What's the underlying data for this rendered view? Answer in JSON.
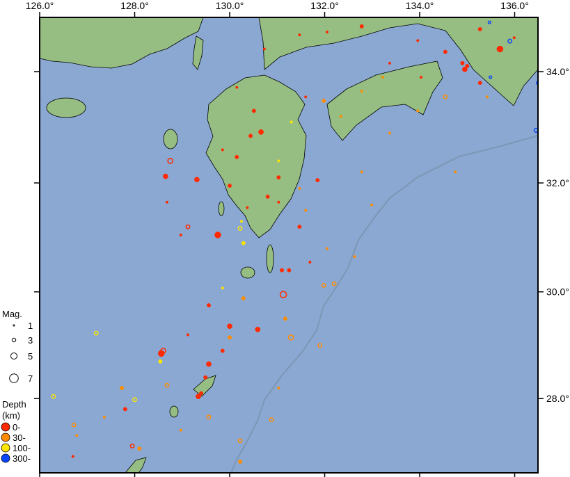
{
  "map": {
    "lon_labels": [
      "126.0°",
      "128.0°",
      "130.0°",
      "132.0°",
      "134.0°",
      "136.0°"
    ],
    "lon_values": [
      126,
      128,
      130,
      132,
      134,
      136
    ],
    "lat_labels": [
      "34.0°",
      "32.0°",
      "30.0°",
      "28.0°"
    ],
    "lat_values": [
      34,
      32,
      30,
      28
    ],
    "extent": {
      "lon": [
        126.0,
        136.5
      ],
      "lat": [
        26.6,
        35.0
      ]
    },
    "colors": {
      "sea": "#8aa8d2",
      "land": "#96bd82",
      "coast": "#000000",
      "trench": "#7d96b4",
      "border": "#8a9a88"
    }
  },
  "legend": {
    "mag_title": "Mag.",
    "mag_items": [
      {
        "label": "1",
        "mag": 1
      },
      {
        "label": "3",
        "mag": 3
      },
      {
        "label": "5",
        "mag": 5
      },
      {
        "label": "7",
        "mag": 7
      }
    ],
    "depth_title_1": "Depth",
    "depth_title_2": "(km)",
    "depth_items": [
      {
        "label": "0-",
        "depth": 0,
        "color": "#ff2a00"
      },
      {
        "label": "30-",
        "depth": 30,
        "color": "#ff8c00"
      },
      {
        "label": "100-",
        "depth": 100,
        "color": "#ffe600"
      },
      {
        "label": "300-",
        "depth": 300,
        "color": "#0a46ff"
      }
    ]
  },
  "events": [
    {
      "lon": 129.75,
      "lat": 31.05,
      "mag": 5,
      "depth": 0,
      "filled": true
    },
    {
      "lon": 129.31,
      "lat": 32.06,
      "mag": 4,
      "depth": 0,
      "filled": true
    },
    {
      "lon": 128.65,
      "lat": 32.12,
      "mag": 4,
      "depth": 0,
      "filled": true
    },
    {
      "lon": 130.0,
      "lat": 29.36,
      "mag": 4,
      "depth": 0,
      "filled": true
    },
    {
      "lon": 130.59,
      "lat": 29.3,
      "mag": 4,
      "depth": 0,
      "filled": true
    },
    {
      "lon": 129.56,
      "lat": 28.65,
      "mag": 4,
      "depth": 0,
      "filled": true
    },
    {
      "lon": 128.56,
      "lat": 28.85,
      "mag": 5,
      "depth": 0,
      "filled": true
    },
    {
      "lon": 128.6,
      "lat": 28.9,
      "mag": 4,
      "depth": 0,
      "filled": false
    },
    {
      "lon": 129.34,
      "lat": 28.04,
      "mag": 4,
      "depth": 0,
      "filled": true
    },
    {
      "lon": 129.4,
      "lat": 28.1,
      "mag": 3,
      "depth": 0,
      "filled": true
    },
    {
      "lon": 130.44,
      "lat": 32.85,
      "mag": 3,
      "depth": 0,
      "filled": true
    },
    {
      "lon": 130.66,
      "lat": 32.92,
      "mag": 4,
      "depth": 0,
      "filled": true
    },
    {
      "lon": 131.13,
      "lat": 29.95,
      "mag": 5,
      "depth": 0,
      "filled": false
    },
    {
      "lon": 134.95,
      "lat": 34.04,
      "mag": 4,
      "depth": 0,
      "filled": true
    },
    {
      "lon": 135.0,
      "lat": 34.1,
      "mag": 3,
      "depth": 0,
      "filled": true
    },
    {
      "lon": 134.9,
      "lat": 34.15,
      "mag": 3,
      "depth": 0,
      "filled": true
    },
    {
      "lon": 135.69,
      "lat": 34.4,
      "mag": 5,
      "depth": 0,
      "filled": true
    },
    {
      "lon": 131.1,
      "lat": 30.4,
      "mag": 3,
      "depth": 0,
      "filled": true
    },
    {
      "lon": 131.47,
      "lat": 31.2,
      "mag": 3,
      "depth": 0,
      "filled": true
    },
    {
      "lon": 131.85,
      "lat": 32.05,
      "mag": 3,
      "depth": 0,
      "filled": true
    },
    {
      "lon": 130.15,
      "lat": 32.47,
      "mag": 3,
      "depth": 0,
      "filled": true
    },
    {
      "lon": 129.85,
      "lat": 32.6,
      "mag": 2,
      "depth": 0,
      "filled": true
    },
    {
      "lon": 130.0,
      "lat": 31.95,
      "mag": 3,
      "depth": 0,
      "filled": true
    },
    {
      "lon": 129.12,
      "lat": 31.2,
      "mag": 3,
      "depth": 0,
      "filled": false
    },
    {
      "lon": 128.75,
      "lat": 32.4,
      "mag": 4,
      "depth": 0,
      "filled": false
    },
    {
      "lon": 131.03,
      "lat": 31.65,
      "mag": 2,
      "depth": 0,
      "filled": true
    },
    {
      "lon": 131.03,
      "lat": 32.1,
      "mag": 3,
      "depth": 0,
      "filled": true
    },
    {
      "lon": 129.56,
      "lat": 29.75,
      "mag": 3,
      "depth": 0,
      "filled": true
    },
    {
      "lon": 129.85,
      "lat": 28.9,
      "mag": 3,
      "depth": 0,
      "filled": true
    },
    {
      "lon": 129.49,
      "lat": 28.4,
      "mag": 3,
      "depth": 0,
      "filled": true
    },
    {
      "lon": 129.12,
      "lat": 29.2,
      "mag": 2,
      "depth": 0,
      "filled": true
    },
    {
      "lon": 127.8,
      "lat": 27.8,
      "mag": 3,
      "depth": 0,
      "filled": true
    },
    {
      "lon": 127.95,
      "lat": 27.1,
      "mag": 3,
      "depth": 0,
      "filled": false
    },
    {
      "lon": 126.7,
      "lat": 26.9,
      "mag": 2,
      "depth": 0,
      "filled": true
    },
    {
      "lon": 131.6,
      "lat": 33.55,
      "mag": 2,
      "depth": 0,
      "filled": true
    },
    {
      "lon": 132.05,
      "lat": 34.7,
      "mag": 2,
      "depth": 0,
      "filled": true
    },
    {
      "lon": 132.78,
      "lat": 34.8,
      "mag": 3,
      "depth": 0,
      "filled": true
    },
    {
      "lon": 133.96,
      "lat": 34.55,
      "mag": 2,
      "depth": 0,
      "filled": true
    },
    {
      "lon": 134.54,
      "lat": 34.35,
      "mag": 3,
      "depth": 0,
      "filled": true
    },
    {
      "lon": 135.27,
      "lat": 34.75,
      "mag": 3,
      "depth": 0,
      "filled": true
    },
    {
      "lon": 135.99,
      "lat": 34.6,
      "mag": 2,
      "depth": 0,
      "filled": true
    },
    {
      "lon": 135.27,
      "lat": 33.8,
      "mag": 3,
      "depth": 0,
      "filled": true
    },
    {
      "lon": 134.03,
      "lat": 33.9,
      "mag": 2,
      "depth": 0,
      "filled": true
    },
    {
      "lon": 133.37,
      "lat": 34.15,
      "mag": 2,
      "depth": 0,
      "filled": true
    },
    {
      "lon": 130.73,
      "lat": 34.4,
      "mag": 2,
      "depth": 0,
      "filled": true
    },
    {
      "lon": 131.47,
      "lat": 34.65,
      "mag": 2,
      "depth": 0,
      "filled": true
    },
    {
      "lon": 130.15,
      "lat": 33.72,
      "mag": 2,
      "depth": 0,
      "filled": true
    },
    {
      "lon": 130.51,
      "lat": 33.3,
      "mag": 3,
      "depth": 0,
      "filled": true
    },
    {
      "lon": 128.97,
      "lat": 31.05,
      "mag": 2,
      "depth": 0,
      "filled": true
    },
    {
      "lon": 128.68,
      "lat": 31.65,
      "mag": 2,
      "depth": 0,
      "filled": true
    },
    {
      "lon": 131.25,
      "lat": 30.4,
      "mag": 3,
      "depth": 0,
      "filled": true
    },
    {
      "lon": 131.69,
      "lat": 30.55,
      "mag": 2,
      "depth": 0,
      "filled": true
    },
    {
      "lon": 130.37,
      "lat": 31.55,
      "mag": 2,
      "depth": 0,
      "filled": true
    },
    {
      "lon": 130.8,
      "lat": 31.75,
      "mag": 3,
      "depth": 0,
      "filled": true
    },
    {
      "lon": 130.22,
      "lat": 31.17,
      "mag": 3,
      "depth": 100,
      "filled": false
    },
    {
      "lon": 130.29,
      "lat": 30.9,
      "mag": 3,
      "depth": 100,
      "filled": true
    },
    {
      "lon": 130.25,
      "lat": 31.3,
      "mag": 2,
      "depth": 100,
      "filled": true
    },
    {
      "lon": 128.54,
      "lat": 28.7,
      "mag": 3,
      "depth": 100,
      "filled": true
    },
    {
      "lon": 127.19,
      "lat": 29.23,
      "mag": 3,
      "depth": 100,
      "filled": false
    },
    {
      "lon": 126.29,
      "lat": 28.04,
      "mag": 3,
      "depth": 100,
      "filled": false
    },
    {
      "lon": 128.0,
      "lat": 27.98,
      "mag": 3,
      "depth": 100,
      "filled": false
    },
    {
      "lon": 129.85,
      "lat": 30.07,
      "mag": 2,
      "depth": 100,
      "filled": true
    },
    {
      "lon": 131.03,
      "lat": 32.4,
      "mag": 2,
      "depth": 100,
      "filled": true
    },
    {
      "lon": 131.3,
      "lat": 33.1,
      "mag": 2,
      "depth": 100,
      "filled": true
    },
    {
      "lon": 131.98,
      "lat": 33.48,
      "mag": 3,
      "depth": 30,
      "filled": true
    },
    {
      "lon": 132.34,
      "lat": 33.2,
      "mag": 2,
      "depth": 30,
      "filled": true
    },
    {
      "lon": 131.47,
      "lat": 31.9,
      "mag": 2,
      "depth": 30,
      "filled": true
    },
    {
      "lon": 131.6,
      "lat": 31.5,
      "mag": 2,
      "depth": 30,
      "filled": true
    },
    {
      "lon": 132.05,
      "lat": 30.8,
      "mag": 2,
      "depth": 30,
      "filled": true
    },
    {
      "lon": 132.2,
      "lat": 30.15,
      "mag": 3,
      "depth": 30,
      "filled": false
    },
    {
      "lon": 131.98,
      "lat": 30.12,
      "mag": 3,
      "depth": 30,
      "filled": false
    },
    {
      "lon": 131.29,
      "lat": 29.15,
      "mag": 4,
      "depth": 30,
      "filled": false
    },
    {
      "lon": 131.17,
      "lat": 29.5,
      "mag": 3,
      "depth": 30,
      "filled": true
    },
    {
      "lon": 130.0,
      "lat": 29.15,
      "mag": 3,
      "depth": 30,
      "filled": true
    },
    {
      "lon": 130.29,
      "lat": 29.88,
      "mag": 3,
      "depth": 30,
      "filled": true
    },
    {
      "lon": 129.56,
      "lat": 27.65,
      "mag": 3,
      "depth": 30,
      "filled": false
    },
    {
      "lon": 128.97,
      "lat": 27.4,
      "mag": 2,
      "depth": 30,
      "filled": true
    },
    {
      "lon": 130.22,
      "lat": 27.2,
      "mag": 3,
      "depth": 30,
      "filled": false
    },
    {
      "lon": 130.88,
      "lat": 27.6,
      "mag": 3,
      "depth": 30,
      "filled": false
    },
    {
      "lon": 131.03,
      "lat": 28.2,
      "mag": 2,
      "depth": 30,
      "filled": true
    },
    {
      "lon": 131.9,
      "lat": 29.0,
      "mag": 3,
      "depth": 30,
      "filled": false
    },
    {
      "lon": 132.63,
      "lat": 30.65,
      "mag": 2,
      "depth": 30,
      "filled": true
    },
    {
      "lon": 132.99,
      "lat": 31.6,
      "mag": 2,
      "depth": 30,
      "filled": true
    },
    {
      "lon": 134.75,
      "lat": 32.2,
      "mag": 2,
      "depth": 30,
      "filled": true
    },
    {
      "lon": 132.78,
      "lat": 32.2,
      "mag": 2,
      "depth": 30,
      "filled": true
    },
    {
      "lon": 133.37,
      "lat": 32.9,
      "mag": 2,
      "depth": 30,
      "filled": true
    },
    {
      "lon": 133.96,
      "lat": 33.3,
      "mag": 2,
      "depth": 30,
      "filled": true
    },
    {
      "lon": 134.54,
      "lat": 33.55,
      "mag": 3,
      "depth": 30,
      "filled": false
    },
    {
      "lon": 135.42,
      "lat": 33.55,
      "mag": 2,
      "depth": 30,
      "filled": true
    },
    {
      "lon": 132.78,
      "lat": 33.65,
      "mag": 2,
      "depth": 30,
      "filled": true
    },
    {
      "lon": 133.22,
      "lat": 33.9,
      "mag": 2,
      "depth": 30,
      "filled": true
    },
    {
      "lon": 126.72,
      "lat": 27.5,
      "mag": 3,
      "depth": 30,
      "filled": false
    },
    {
      "lon": 126.78,
      "lat": 27.3,
      "mag": 2,
      "depth": 30,
      "filled": true
    },
    {
      "lon": 128.1,
      "lat": 27.05,
      "mag": 3,
      "depth": 30,
      "filled": true
    },
    {
      "lon": 127.36,
      "lat": 27.65,
      "mag": 2,
      "depth": 30,
      "filled": true
    },
    {
      "lon": 127.73,
      "lat": 28.2,
      "mag": 3,
      "depth": 30,
      "filled": true
    },
    {
      "lon": 130.22,
      "lat": 26.8,
      "mag": 3,
      "depth": 30,
      "filled": true
    },
    {
      "lon": 128.68,
      "lat": 28.25,
      "mag": 3,
      "depth": 30,
      "filled": false
    },
    {
      "lon": 135.47,
      "lat": 34.87,
      "mag": 2,
      "depth": 300,
      "filled": false
    },
    {
      "lon": 135.9,
      "lat": 34.54,
      "mag": 3,
      "depth": 300,
      "filled": false
    },
    {
      "lon": 136.45,
      "lat": 32.95,
      "mag": 3,
      "depth": 300,
      "filled": false
    },
    {
      "lon": 135.49,
      "lat": 33.9,
      "mag": 2,
      "depth": 300,
      "filled": false
    },
    {
      "lon": 136.5,
      "lat": 33.8,
      "mag": 3,
      "depth": 300,
      "filled": false
    }
  ]
}
